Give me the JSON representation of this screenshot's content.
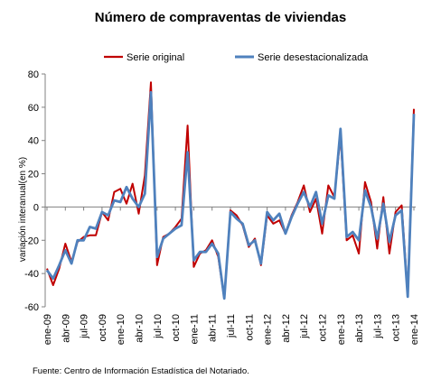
{
  "chart_data": {
    "type": "line",
    "title": "Número de compraventas de viviendas",
    "xlabel": "",
    "ylabel": "variación interanual(en %)",
    "ylim": [
      -60,
      80
    ],
    "yticks": [
      -60,
      -40,
      -20,
      0,
      20,
      40,
      60,
      80
    ],
    "grid": false,
    "legend_position": "top",
    "x": [
      "ene-09",
      "feb-09",
      "mar-09",
      "abr-09",
      "may-09",
      "jun-09",
      "jul-09",
      "ago-09",
      "sep-09",
      "oct-09",
      "nov-09",
      "dic-09",
      "ene-10",
      "feb-10",
      "mar-10",
      "abr-10",
      "may-10",
      "jun-10",
      "jul-10",
      "ago-10",
      "sep-10",
      "oct-10",
      "nov-10",
      "dic-10",
      "ene-11",
      "feb-11",
      "mar-11",
      "abr-11",
      "may-11",
      "jun-11",
      "jul-11",
      "ago-11",
      "sep-11",
      "oct-11",
      "nov-11",
      "dic-11",
      "ene-12",
      "feb-12",
      "mar-12",
      "abr-12",
      "may-12",
      "jun-12",
      "jul-12",
      "ago-12",
      "sep-12",
      "oct-12",
      "nov-12",
      "dic-12",
      "ene-13",
      "feb-13",
      "mar-13",
      "abr-13",
      "may-13",
      "jun-13",
      "jul-13",
      "ago-13",
      "sep-13",
      "oct-13",
      "nov-13",
      "dic-13",
      "ene-14"
    ],
    "xtick_labels": [
      "ene-09",
      "abr-09",
      "jul-09",
      "oct-09",
      "ene-10",
      "abr-10",
      "jul-10",
      "oct-10",
      "ene-11",
      "abr-11",
      "jul-11",
      "oct-11",
      "ene-12",
      "abr-12",
      "jul-12",
      "oct-12",
      "ene-13",
      "abr-13",
      "jul-13",
      "oct-13",
      "ene-14"
    ],
    "series": [
      {
        "name": "Serie original",
        "color": "#c00000",
        "values": [
          -37,
          -47,
          -37,
          -22,
          -33,
          -21,
          -18,
          -17,
          -17,
          -3,
          -8,
          9,
          11,
          2,
          14,
          -4,
          19,
          75,
          -35,
          -18,
          -16,
          -12,
          -7,
          49,
          -36,
          -28,
          -26,
          -20,
          -30,
          -55,
          -2,
          -5,
          -11,
          -24,
          -19,
          -35,
          -5,
          -10,
          -8,
          -16,
          -5,
          3,
          13,
          -3,
          5,
          -16,
          13,
          6,
          43,
          -20,
          -17,
          -28,
          15,
          3,
          -25,
          6,
          -28,
          -3,
          1,
          -52,
          59
        ]
      },
      {
        "name": "Serie desestacionalizada",
        "color": "#4f81bd",
        "values": [
          -38,
          -43,
          -35,
          -26,
          -34,
          -20,
          -20,
          -12,
          -13,
          -3,
          -5,
          4,
          3,
          12,
          5,
          0,
          8,
          69,
          -30,
          -19,
          -16,
          -13,
          -11,
          33,
          -32,
          -27,
          -27,
          -22,
          -28,
          -55,
          -3,
          -7,
          -10,
          -23,
          -20,
          -34,
          -3,
          -8,
          -4,
          -16,
          -6,
          2,
          9,
          0,
          9,
          -10,
          7,
          5,
          47,
          -18,
          -15,
          -20,
          10,
          0,
          -19,
          2,
          -21,
          -5,
          -2,
          -54,
          56
        ]
      }
    ],
    "source_note": "Fuente: Centro de Información Estadística del Notariado."
  }
}
